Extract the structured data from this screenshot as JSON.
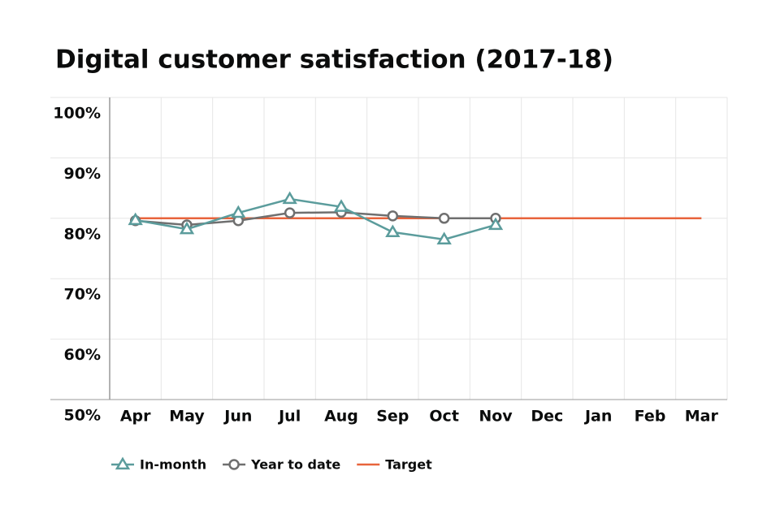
{
  "chart_data": {
    "type": "line",
    "title": "Digital customer satisfaction (2017-18)",
    "categories": [
      "Apr",
      "May",
      "Jun",
      "Jul",
      "Aug",
      "Sep",
      "Oct",
      "Nov",
      "Dec",
      "Jan",
      "Feb",
      "Mar"
    ],
    "series": [
      {
        "name": "In-month",
        "color": "#5b9c9c",
        "marker": "triangle",
        "values": [
          79.7,
          78.2,
          80.9,
          83.2,
          81.9,
          77.7,
          76.5,
          78.9,
          null,
          null,
          null,
          null
        ]
      },
      {
        "name": "Year to date",
        "color": "#6f6f6f",
        "marker": "circle",
        "values": [
          79.6,
          78.9,
          79.6,
          80.9,
          81.0,
          80.4,
          80.0,
          80.0,
          null,
          null,
          null,
          null
        ]
      },
      {
        "name": "Target",
        "color": "#e8643c",
        "marker": "none",
        "values": [
          80,
          80,
          80,
          80,
          80,
          80,
          80,
          80,
          80,
          80,
          80,
          80
        ]
      }
    ],
    "ylim": [
      50,
      100
    ],
    "yticks": [
      {
        "value": 50,
        "label": "50%"
      },
      {
        "value": 60,
        "label": "60%"
      },
      {
        "value": 70,
        "label": "70%"
      },
      {
        "value": 80,
        "label": "80%"
      },
      {
        "value": 90,
        "label": "90%"
      },
      {
        "value": 100,
        "label": "100%"
      }
    ],
    "grid": true,
    "legend": "bottom"
  }
}
